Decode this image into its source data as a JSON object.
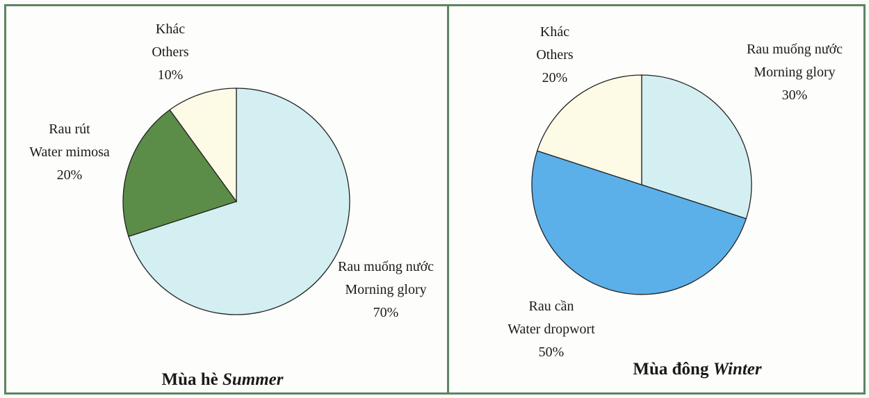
{
  "chart_data": [
    {
      "type": "pie",
      "title": "Mùa hè",
      "title_italic": "Summer",
      "categories": [
        "Rau muống nước",
        "Rau rút",
        "Khác"
      ],
      "categories_en": [
        "Morning glory",
        "Water mimosa",
        "Others"
      ],
      "values": [
        70,
        20,
        10
      ],
      "value_labels": [
        "70%",
        "20%",
        "10%"
      ],
      "colors": [
        "#d3eff1",
        "#5b8c48",
        "#fdfbe6"
      ]
    },
    {
      "type": "pie",
      "title": "Mùa đông",
      "title_italic": "Winter",
      "categories": [
        "Rau muống nước",
        "Rau cần",
        "Khác"
      ],
      "categories_en": [
        "Morning glory",
        "Water dropwort",
        "Others"
      ],
      "values": [
        30,
        50,
        20
      ],
      "value_labels": [
        "30%",
        "50%",
        "20%"
      ],
      "colors": [
        "#d3eff1",
        "#5cb0ea",
        "#fdfbe6"
      ]
    }
  ]
}
